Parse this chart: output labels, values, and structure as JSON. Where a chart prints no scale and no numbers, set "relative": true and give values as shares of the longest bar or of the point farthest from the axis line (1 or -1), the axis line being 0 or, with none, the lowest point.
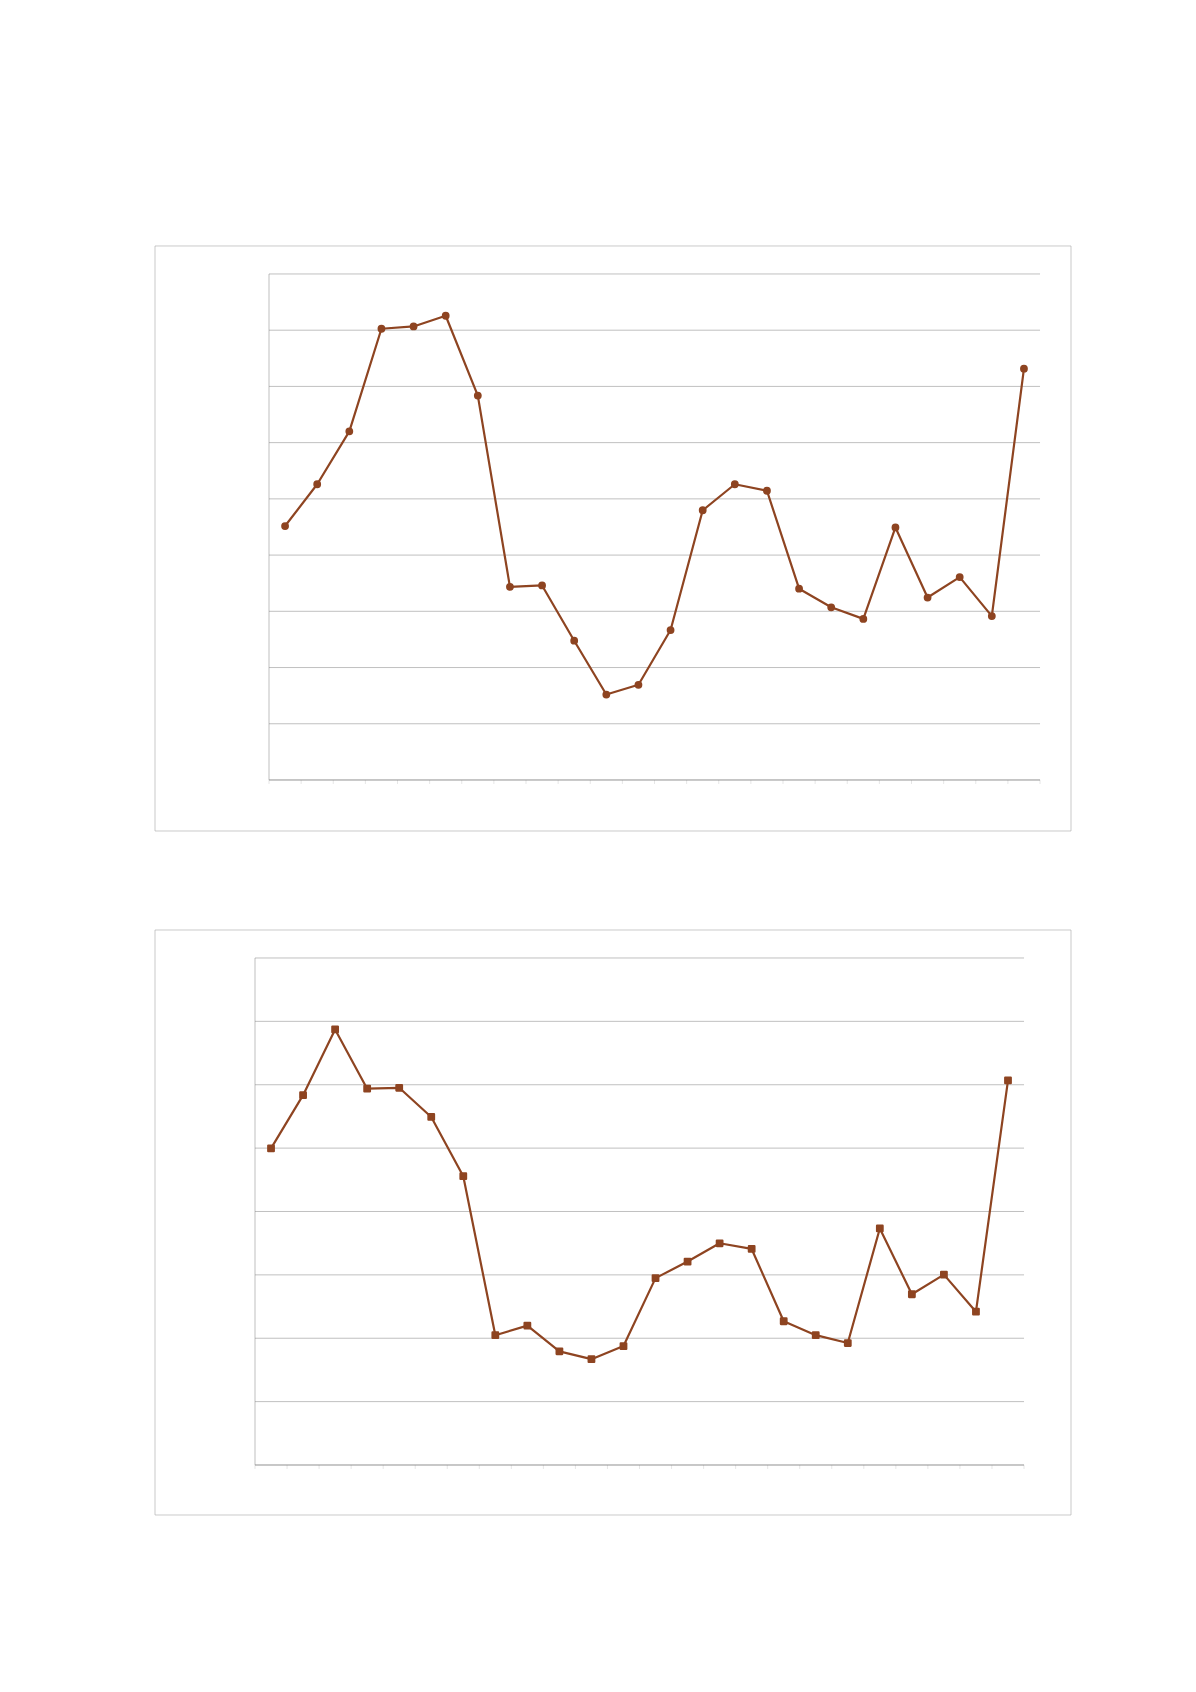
{
  "chart_data": [
    {
      "type": "line",
      "relative": true,
      "grid": "y",
      "marker": "circle",
      "line_style": "solid",
      "categories": [
        null,
        null,
        null,
        null,
        null,
        null,
        null,
        null,
        null,
        null,
        null,
        null,
        null,
        null,
        null,
        null,
        null,
        null,
        null,
        null,
        null,
        null,
        null,
        null
      ],
      "series": [
        {
          "color": "#8e4421",
          "values": [
            0.547,
            0.637,
            0.751,
            0.972,
            0.977,
            1,
            0.828,
            0.416,
            0.419,
            0.3,
            0.184,
            0.205,
            0.323,
            0.581,
            0.637,
            0.623,
            0.412,
            0.372,
            0.347,
            0.544,
            0.393,
            0.437,
            0.353,
            0.886
          ]
        }
      ]
    },
    {
      "type": "line",
      "relative": true,
      "grid": "y",
      "marker": "square",
      "line_style": "solid",
      "categories": [
        null,
        null,
        null,
        null,
        null,
        null,
        null,
        null,
        null,
        null,
        null,
        null,
        null,
        null,
        null,
        null,
        null,
        null,
        null,
        null,
        null,
        null,
        null,
        null
      ],
      "series": [
        {
          "color": "#8e4421",
          "values": [
            0.727,
            0.849,
            1,
            0.864,
            0.866,
            0.799,
            0.663,
            0.298,
            0.32,
            0.261,
            0.243,
            0.273,
            0.429,
            0.467,
            0.509,
            0.496,
            0.33,
            0.298,
            0.28,
            0.543,
            0.392,
            0.437,
            0.352,
            0.883
          ]
        }
      ]
    }
  ]
}
